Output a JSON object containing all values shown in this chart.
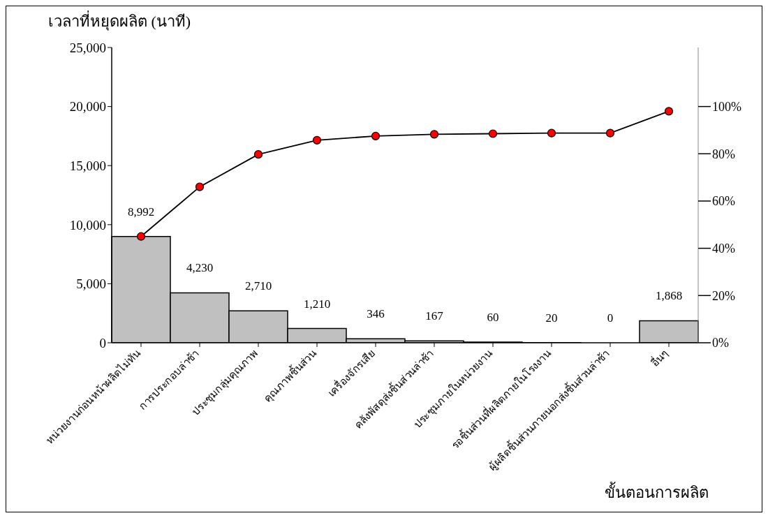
{
  "chart_data": {
    "type": "bar",
    "xlabel": "ขั้นตอนการผลิต",
    "ylabel": "เวลาที่หยุดผลิต (นาที)",
    "categories": [
      "หน่วยงานก่อนหน้าผลิตไม่ทัน",
      "การประกอบล่าช้า",
      "ประชุมกลุ่มคุณภาพ",
      "คุณภาพชิ้นส่วน",
      "เครื่องจักรเสีย",
      "คลังพัสดุส่งชิ้นส่วนล่าช้า",
      "ประชุมภายในหน่วยงาน",
      "รอชิ้นส่วนที่ผลิตภายในโรงงาน",
      "ผู้ผลิตชิ้นส่วนภายนอกส่งชิ้นส่วนล่าช้า",
      "อื่นๆ"
    ],
    "series": [
      {
        "color": "#c0c0c0",
        "values": [
          8992,
          4230,
          2710,
          1210,
          346,
          167,
          60,
          20,
          0,
          1868
        ],
        "value_labels": [
          "8,992",
          "4,230",
          "2,710",
          "1,210",
          "346",
          "167",
          "60",
          "20",
          "0",
          "1,868"
        ]
      },
      {
        "type": "line",
        "color": "#000000",
        "marker": "circle",
        "values": [
          9000,
          13200,
          15950,
          17150,
          17500,
          17650,
          17700,
          17750,
          17750,
          19600
        ]
      }
    ],
    "ylim": [
      0,
      25000
    ],
    "yticks": [
      {
        "value": 0,
        "label": "0"
      },
      {
        "value": 5000,
        "label": "5,000"
      },
      {
        "value": 10000,
        "label": "10,000"
      },
      {
        "value": 15000,
        "label": "15,000"
      },
      {
        "value": 20000,
        "label": "20,000"
      },
      {
        "value": 25000,
        "label": "25,000"
      }
    ],
    "y2lim": [
      0,
      125
    ],
    "y2ticks": [
      {
        "value": 0,
        "label": "0%"
      },
      {
        "value": 20,
        "label": "20%"
      },
      {
        "value": 40,
        "label": "40%"
      },
      {
        "value": 60,
        "label": "60%"
      },
      {
        "value": 80,
        "label": "80%"
      },
      {
        "value": 100,
        "label": "100%"
      }
    ],
    "grid": false,
    "legend": false
  }
}
